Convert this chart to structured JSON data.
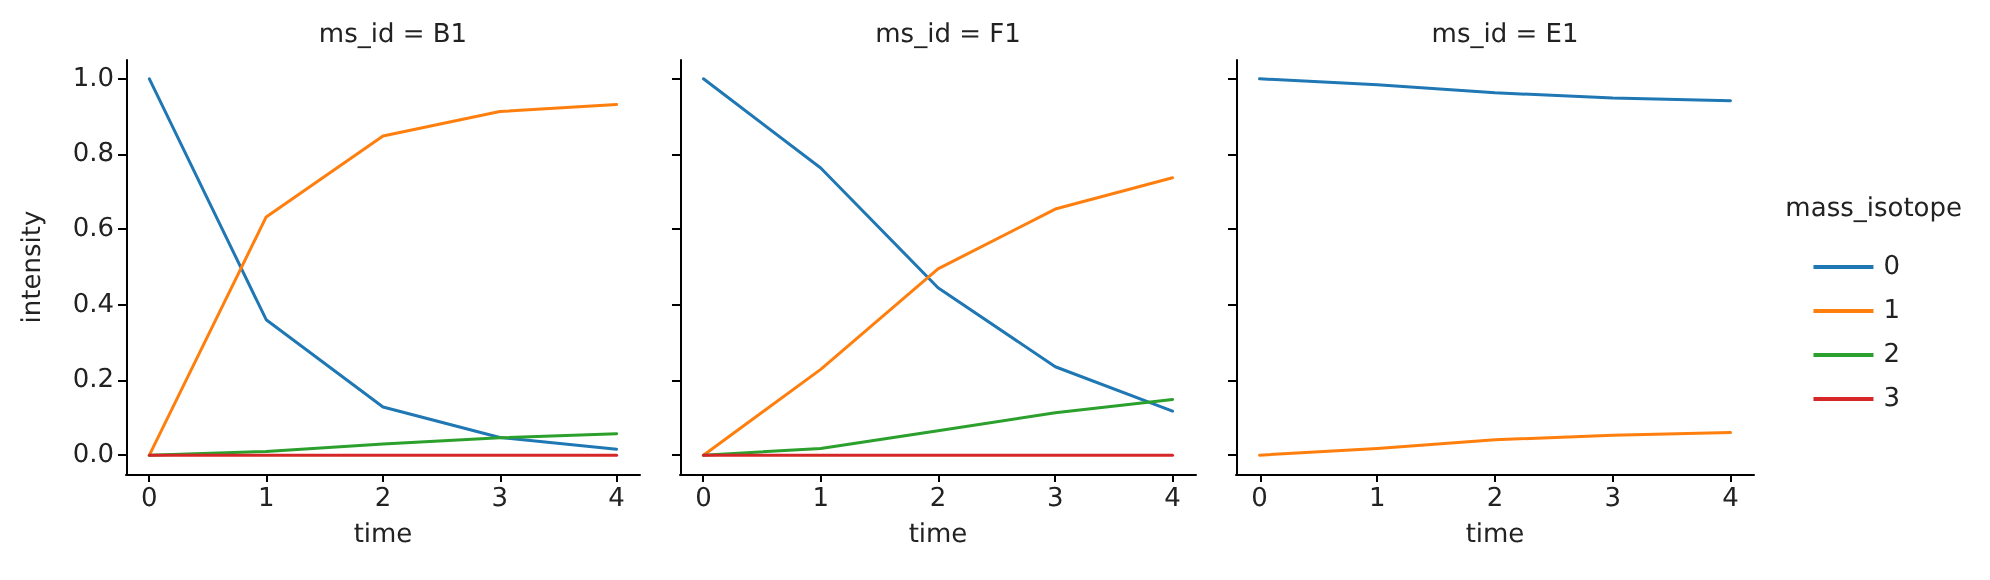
{
  "chart_data": [
    {
      "type": "line",
      "title": "ms_id = B1",
      "xlabel": "time",
      "ylabel": "intensity",
      "x": [
        0,
        1,
        2,
        3,
        4
      ],
      "xlim": [
        -0.2,
        4.2
      ],
      "xticks": [
        0,
        1,
        2,
        3,
        4
      ],
      "ylim": [
        -0.05,
        1.05
      ],
      "yticks": [
        {
          "value": 0,
          "label": "0.0"
        },
        {
          "value": 0.2,
          "label": "0.2"
        },
        {
          "value": 0.4,
          "label": "0.4"
        },
        {
          "value": 0.6,
          "label": "0.6"
        },
        {
          "value": 0.8,
          "label": "0.8"
        },
        {
          "value": 1,
          "label": "1.0"
        }
      ],
      "grid": false,
      "legend": false,
      "marker": "none",
      "line_style": "solid",
      "series": [
        {
          "name": "0",
          "color": "#1f77b4",
          "values": [
            1.0,
            0.36,
            0.128,
            0.047,
            0.016
          ]
        },
        {
          "name": "1",
          "color": "#ff7f0e",
          "values": [
            0,
            0.633,
            0.848,
            0.913,
            0.932
          ]
        },
        {
          "name": "2",
          "color": "#2ca02c",
          "values": [
            0,
            0.01,
            0.03,
            0.046,
            0.057
          ]
        },
        {
          "name": "3",
          "color": "#d62728",
          "values": [
            0,
            0,
            0,
            0,
            0
          ]
        }
      ]
    },
    {
      "type": "line",
      "title": "ms_id = F1",
      "xlabel": "time",
      "x": [
        0,
        1,
        2,
        3,
        4
      ],
      "xlim": [
        -0.2,
        4.2
      ],
      "xticks": [
        0,
        1,
        2,
        3,
        4
      ],
      "ylim": [
        -0.05,
        1.05
      ],
      "yticks": [
        {
          "value": 0,
          "label": null
        },
        {
          "value": 0.2,
          "label": null
        },
        {
          "value": 0.4,
          "label": null
        },
        {
          "value": 0.6,
          "label": null
        },
        {
          "value": 0.8,
          "label": null
        },
        {
          "value": 1,
          "label": null
        }
      ],
      "tick_labels": "x",
      "grid": false,
      "legend": false,
      "marker": "none",
      "line_style": "solid",
      "series": [
        {
          "name": "0",
          "color": "#1f77b4",
          "values": [
            1.0,
            0.763,
            0.445,
            0.235,
            0.117
          ]
        },
        {
          "name": "1",
          "color": "#ff7f0e",
          "values": [
            0,
            0.228,
            0.495,
            0.654,
            0.737
          ]
        },
        {
          "name": "2",
          "color": "#2ca02c",
          "values": [
            0,
            0.018,
            0.065,
            0.113,
            0.148
          ]
        },
        {
          "name": "3",
          "color": "#d62728",
          "values": [
            0,
            0,
            0,
            0,
            0
          ]
        }
      ]
    },
    {
      "type": "line",
      "title": "ms_id = E1",
      "xlabel": "time",
      "legend_title": "mass_isotope",
      "x": [
        0,
        1,
        2,
        3,
        4
      ],
      "xlim": [
        -0.2,
        4.2
      ],
      "xticks": [
        0,
        1,
        2,
        3,
        4
      ],
      "ylim": [
        -0.05,
        1.05
      ],
      "yticks": [
        {
          "value": 0,
          "label": null
        },
        {
          "value": 0.2,
          "label": null
        },
        {
          "value": 0.4,
          "label": null
        },
        {
          "value": 0.6,
          "label": null
        },
        {
          "value": 0.8,
          "label": null
        },
        {
          "value": 1,
          "label": null
        }
      ],
      "tick_labels": "x",
      "grid": false,
      "legend": "right",
      "marker": "none",
      "line_style": "solid",
      "series": [
        {
          "name": "0",
          "color": "#1f77b4",
          "values": [
            1.0,
            0.984,
            0.963,
            0.949,
            0.942
          ]
        },
        {
          "name": "1",
          "color": "#ff7f0e",
          "values": [
            0,
            0.018,
            0.041,
            0.053,
            0.06
          ]
        },
        {
          "name": "2",
          "color": "#2ca02c",
          "values": [
            null,
            null,
            null,
            null,
            null
          ]
        },
        {
          "name": "3",
          "color": "#d62728",
          "values": [
            null,
            null,
            null,
            null,
            null
          ]
        }
      ]
    }
  ]
}
